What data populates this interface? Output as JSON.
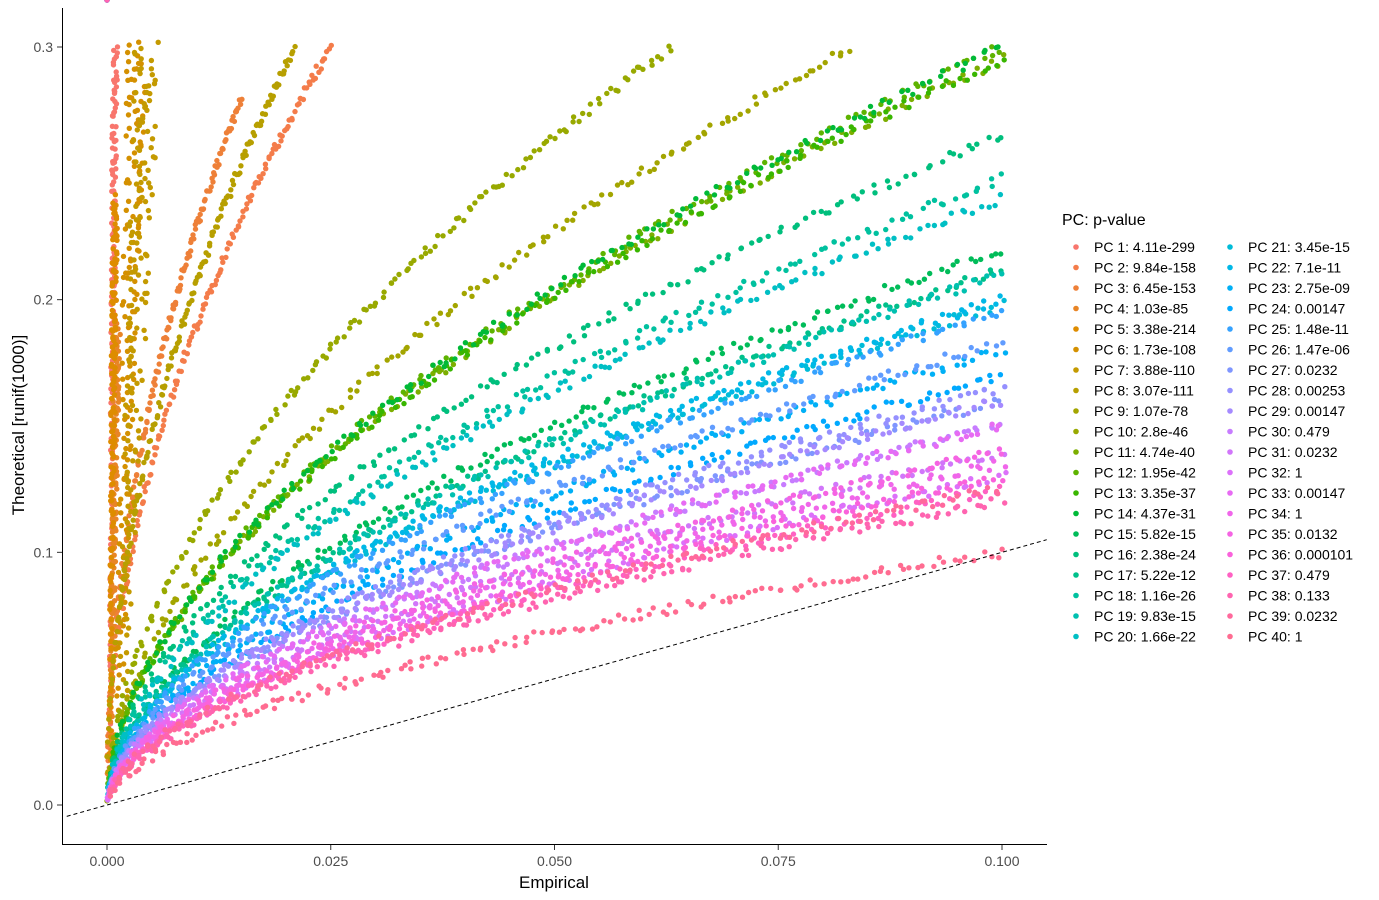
{
  "chart_data": {
    "type": "scatter",
    "title": "",
    "xlabel": "Empirical",
    "ylabel": "Theoretical [runif(1000)]",
    "xlim": [
      -0.005,
      0.105
    ],
    "ylim": [
      -0.015,
      0.315
    ],
    "x_ticks": [
      "0.000",
      "0.025",
      "0.050",
      "0.075",
      "0.100"
    ],
    "x_tick_values": [
      0.0,
      0.025,
      0.05,
      0.075,
      0.1
    ],
    "y_ticks": [
      "0.0",
      "0.1",
      "0.2",
      "0.3"
    ],
    "y_tick_values": [
      0.0,
      0.1,
      0.2,
      0.3
    ],
    "grid": false,
    "legend_position": "right",
    "legend_title": "PC: p-value",
    "reference_line": {
      "style": "dashed",
      "slope": 1,
      "intercept": 0,
      "color": "#000000"
    },
    "series": [
      {
        "name": "PC 1: 4.11e-299",
        "color": "#F8766D",
        "max_x": 0.0012,
        "end_y": 0.3
      },
      {
        "name": "PC 2: 9.84e-158",
        "color": "#F47C4A",
        "max_x": 0.025,
        "end_y": 0.3
      },
      {
        "name": "PC 3: 6.45e-153",
        "color": "#EE8038",
        "max_x": 0.015,
        "end_y": 0.28
      },
      {
        "name": "PC 4: 1.03e-85",
        "color": "#E88526",
        "max_x": 0.0015,
        "end_y": 0.19
      },
      {
        "name": "PC 5: 3.38e-214",
        "color": "#DE8C00",
        "max_x": 0.0012,
        "end_y": 0.24
      },
      {
        "name": "PC 6: 1.73e-108",
        "color": "#D49000",
        "max_x": 0.0045,
        "end_y": 0.3
      },
      {
        "name": "PC 7: 3.88e-110",
        "color": "#C49A00",
        "max_x": 0.006,
        "end_y": 0.3
      },
      {
        "name": "PC 8: 3.07e-111",
        "color": "#B79F00",
        "max_x": 0.021,
        "end_y": 0.3
      },
      {
        "name": "PC 9: 1.07e-78",
        "color": "#A3A500",
        "max_x": 0.083,
        "end_y": 0.3
      },
      {
        "name": "PC 10: 2.8e-46",
        "color": "#98A900",
        "max_x": 0.063,
        "end_y": 0.3
      },
      {
        "name": "PC 11: 4.74e-40",
        "color": "#7CAE00",
        "max_x": 0.1,
        "end_y": 0.295
      },
      {
        "name": "PC 12: 1.95e-42",
        "color": "#5EB300",
        "max_x": 0.1,
        "end_y": 0.3
      },
      {
        "name": "PC 13: 3.35e-37",
        "color": "#39B600",
        "max_x": 0.1,
        "end_y": 0.295
      },
      {
        "name": "PC 14: 4.37e-31",
        "color": "#00BA38",
        "max_x": 0.1,
        "end_y": 0.3
      },
      {
        "name": "PC 15: 5.82e-15",
        "color": "#00BC59",
        "max_x": 0.1,
        "end_y": 0.22
      },
      {
        "name": "PC 16: 2.38e-24",
        "color": "#00BF7D",
        "max_x": 0.1,
        "end_y": 0.265
      },
      {
        "name": "PC 17: 5.22e-12",
        "color": "#00C08B",
        "max_x": 0.1,
        "end_y": 0.212
      },
      {
        "name": "PC 18: 1.16e-26",
        "color": "#00C19F",
        "max_x": 0.1,
        "end_y": 0.248
      },
      {
        "name": "PC 19: 9.83e-15",
        "color": "#00C0B0",
        "max_x": 0.1,
        "end_y": 0.21
      },
      {
        "name": "PC 20: 1.66e-22",
        "color": "#00BFC4",
        "max_x": 0.1,
        "end_y": 0.24
      },
      {
        "name": "PC 21: 3.45e-15",
        "color": "#00BCD8",
        "max_x": 0.1,
        "end_y": 0.198
      },
      {
        "name": "PC 22: 7.1e-11",
        "color": "#00B8E7",
        "max_x": 0.1,
        "end_y": 0.2
      },
      {
        "name": "PC 23: 2.75e-09",
        "color": "#00B0F6",
        "max_x": 0.1,
        "end_y": 0.18
      },
      {
        "name": "PC 24: 0.00147",
        "color": "#00A9FF",
        "max_x": 0.1,
        "end_y": 0.17
      },
      {
        "name": "PC 25: 1.48e-11",
        "color": "#35A2FF",
        "max_x": 0.1,
        "end_y": 0.195
      },
      {
        "name": "PC 26: 1.47e-06",
        "color": "#619CFF",
        "max_x": 0.1,
        "end_y": 0.183
      },
      {
        "name": "PC 27: 0.0232",
        "color": "#7F96FF",
        "max_x": 0.1,
        "end_y": 0.16
      },
      {
        "name": "PC 28: 0.00253",
        "color": "#9590FF",
        "max_x": 0.1,
        "end_y": 0.165
      },
      {
        "name": "PC 29: 0.00147",
        "color": "#A58AFF",
        "max_x": 0.1,
        "end_y": 0.16
      },
      {
        "name": "PC 30: 0.479",
        "color": "#C77CFF",
        "max_x": 0.1,
        "end_y": 0.15
      },
      {
        "name": "PC 31: 0.0232",
        "color": "#D176FA",
        "max_x": 0.1,
        "end_y": 0.14
      },
      {
        "name": "PC 32: 1",
        "color": "#DC71FA",
        "max_x": 0.1,
        "end_y": 0.13
      },
      {
        "name": "PC 33: 0.00147",
        "color": "#E76BF3",
        "max_x": 0.1,
        "end_y": 0.15
      },
      {
        "name": "PC 34: 1",
        "color": "#F066EA",
        "max_x": 0.1,
        "end_y": 0.135
      },
      {
        "name": "PC 35: 0.0132",
        "color": "#F564E3",
        "max_x": 0.1,
        "end_y": 0.14
      },
      {
        "name": "PC 36: 0.000101",
        "color": "#FA62DB",
        "max_x": 0.1,
        "end_y": 0.13
      },
      {
        "name": "PC 37: 0.479",
        "color": "#FF61C3",
        "max_x": 0.1,
        "end_y": 0.125
      },
      {
        "name": "PC 38: 0.133",
        "color": "#FF64B0",
        "max_x": 0.1,
        "end_y": 0.12
      },
      {
        "name": "PC 39: 0.0232",
        "color": "#FF699C",
        "max_x": 0.1,
        "end_y": 0.125
      },
      {
        "name": "PC 40: 1",
        "color": "#FF6C91",
        "max_x": 0.1,
        "end_y": 0.1
      }
    ]
  }
}
